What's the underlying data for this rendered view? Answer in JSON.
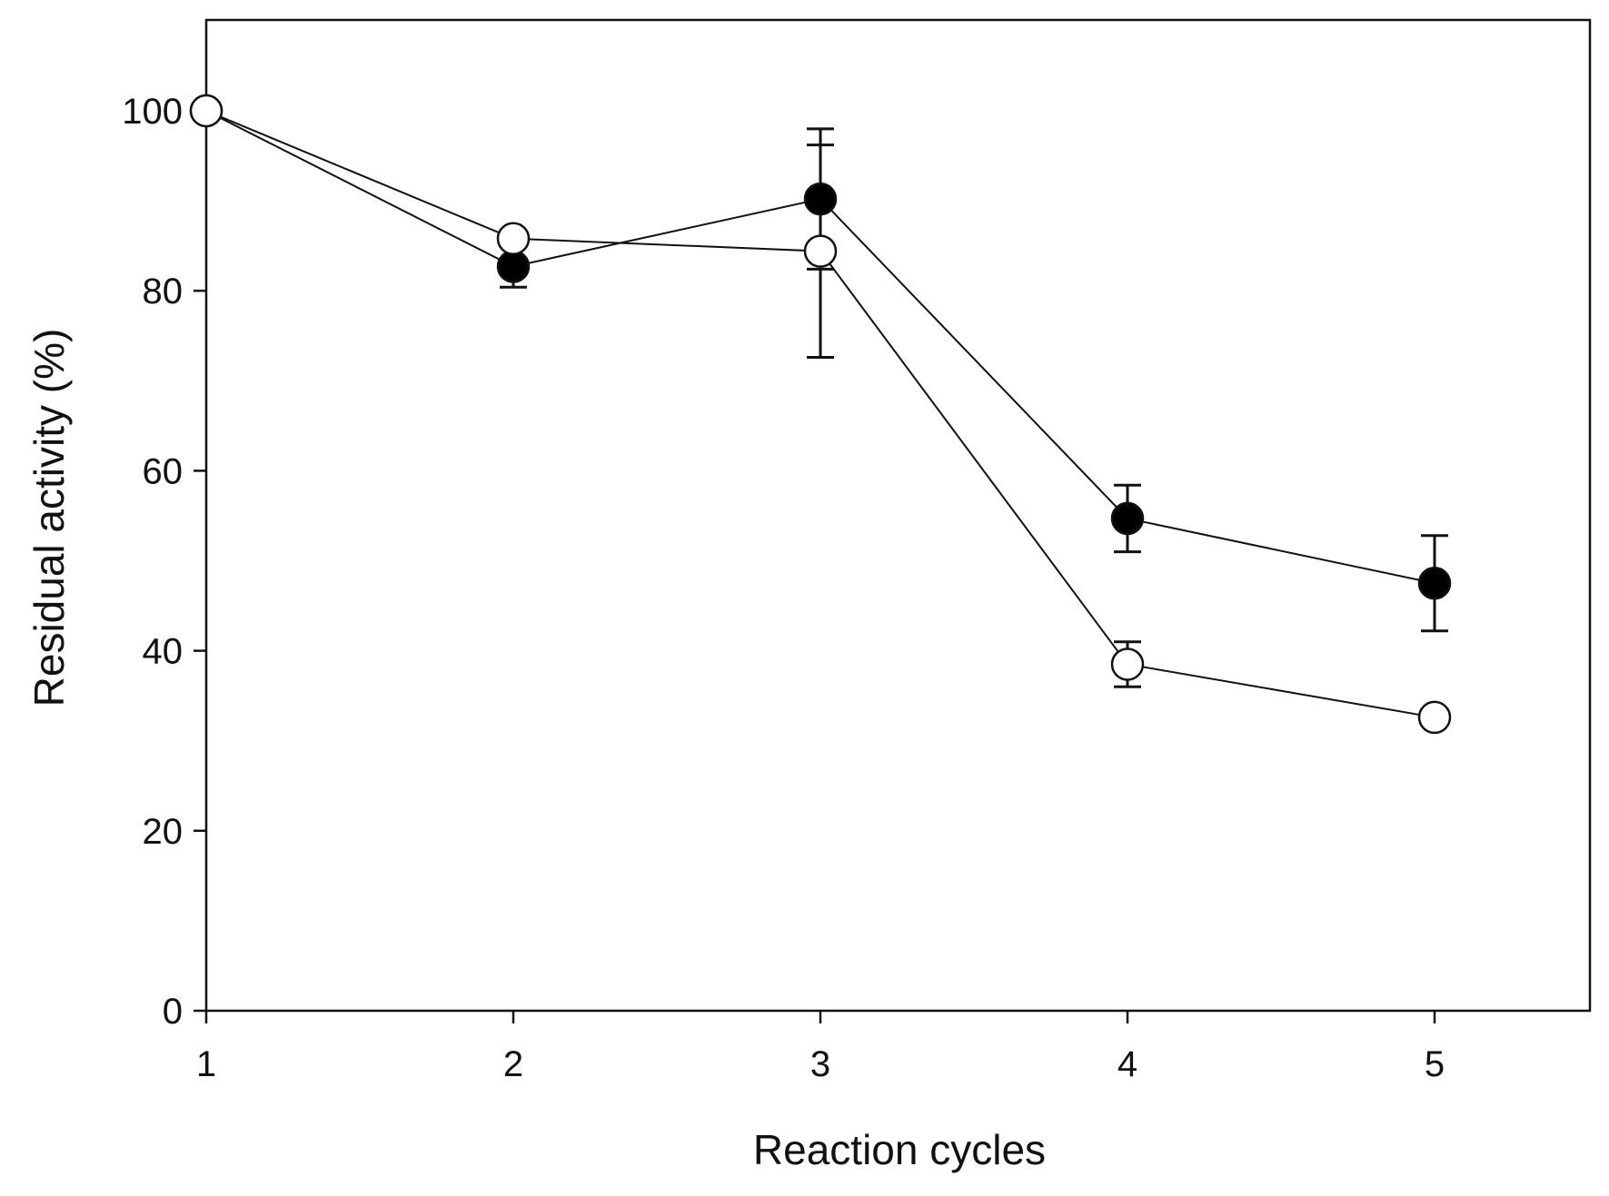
{
  "chart_data": {
    "type": "line",
    "title": "",
    "xlabel": "Reaction cycles",
    "ylabel": "Residual activity (%)",
    "xlim": [
      1,
      5.5
    ],
    "ylim": [
      0,
      110
    ],
    "x_ticks": [
      1,
      2,
      3,
      4,
      5
    ],
    "x_tick_labels": [
      "1",
      "2",
      "3",
      "4",
      "5"
    ],
    "y_ticks": [
      0,
      20,
      40,
      60,
      80,
      100
    ],
    "y_tick_labels": [
      "0",
      "20",
      "40",
      "60",
      "80",
      "100"
    ],
    "grid": false,
    "legend": "none",
    "x": [
      1,
      2,
      3,
      4,
      5
    ],
    "series": [
      {
        "name": "filled circles",
        "marker": "filled-circle",
        "values": [
          100,
          82.7,
          90.2,
          54.7,
          47.5
        ],
        "errors": [
          0,
          2.3,
          7.8,
          3.7,
          5.3
        ]
      },
      {
        "name": "open circles",
        "marker": "open-circle",
        "values": [
          100,
          85.8,
          84.4,
          38.5,
          32.6
        ],
        "errors": [
          0,
          0,
          11.8,
          2.5,
          0
        ]
      }
    ],
    "colors": {
      "line": "#111111",
      "filled_marker": "#000000",
      "open_marker_fill": "#ffffff"
    }
  }
}
